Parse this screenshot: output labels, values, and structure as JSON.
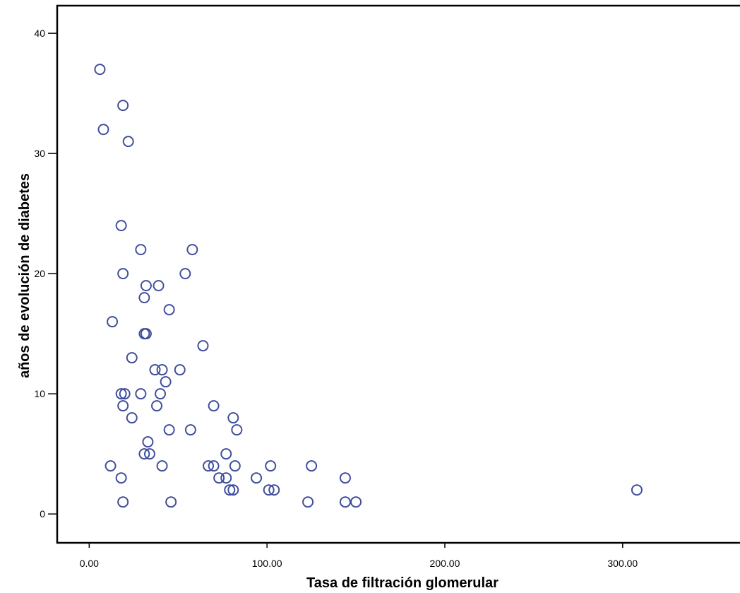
{
  "chart_data": {
    "type": "scatter",
    "title": "",
    "xlabel": "Tasa de filtración glomerular",
    "ylabel": "años de evolución de diabetes",
    "xlim": [
      -18,
      366
    ],
    "ylim": [
      -2.4,
      42.3
    ],
    "xticks": [
      0,
      100,
      200,
      300
    ],
    "xtick_labels": [
      "0.00",
      "100.00",
      "200.00",
      "300.00"
    ],
    "yticks": [
      0,
      10,
      20,
      30,
      40
    ],
    "ytick_labels": [
      "0",
      "10",
      "20",
      "30",
      "40"
    ],
    "grid": false,
    "marker_color": "#3f4e9c",
    "series": [
      {
        "points": [
          [
            6,
            37
          ],
          [
            19,
            34
          ],
          [
            8,
            32
          ],
          [
            22,
            31
          ],
          [
            18,
            24
          ],
          [
            29,
            22
          ],
          [
            58,
            22
          ],
          [
            19,
            20
          ],
          [
            54,
            20
          ],
          [
            32,
            19
          ],
          [
            39,
            19
          ],
          [
            31,
            18
          ],
          [
            45,
            17
          ],
          [
            13,
            16
          ],
          [
            31,
            15
          ],
          [
            32,
            15
          ],
          [
            64,
            14
          ],
          [
            24,
            13
          ],
          [
            37,
            12
          ],
          [
            41,
            12
          ],
          [
            51,
            12
          ],
          [
            43,
            11
          ],
          [
            18,
            10
          ],
          [
            20,
            10
          ],
          [
            29,
            10
          ],
          [
            40,
            10
          ],
          [
            19,
            9
          ],
          [
            38,
            9
          ],
          [
            70,
            9
          ],
          [
            24,
            8
          ],
          [
            81,
            8
          ],
          [
            45,
            7
          ],
          [
            57,
            7
          ],
          [
            83,
            7
          ],
          [
            33,
            6
          ],
          [
            31,
            5
          ],
          [
            34,
            5
          ],
          [
            77,
            5
          ],
          [
            12,
            4
          ],
          [
            41,
            4
          ],
          [
            67,
            4
          ],
          [
            70,
            4
          ],
          [
            82,
            4
          ],
          [
            102,
            4
          ],
          [
            125,
            4
          ],
          [
            18,
            3
          ],
          [
            73,
            3
          ],
          [
            77,
            3
          ],
          [
            94,
            3
          ],
          [
            144,
            3
          ],
          [
            79,
            2
          ],
          [
            81,
            2
          ],
          [
            101,
            2
          ],
          [
            104,
            2
          ],
          [
            308,
            2
          ],
          [
            19,
            1
          ],
          [
            46,
            1
          ],
          [
            123,
            1
          ],
          [
            144,
            1
          ],
          [
            150,
            1
          ]
        ]
      }
    ]
  }
}
